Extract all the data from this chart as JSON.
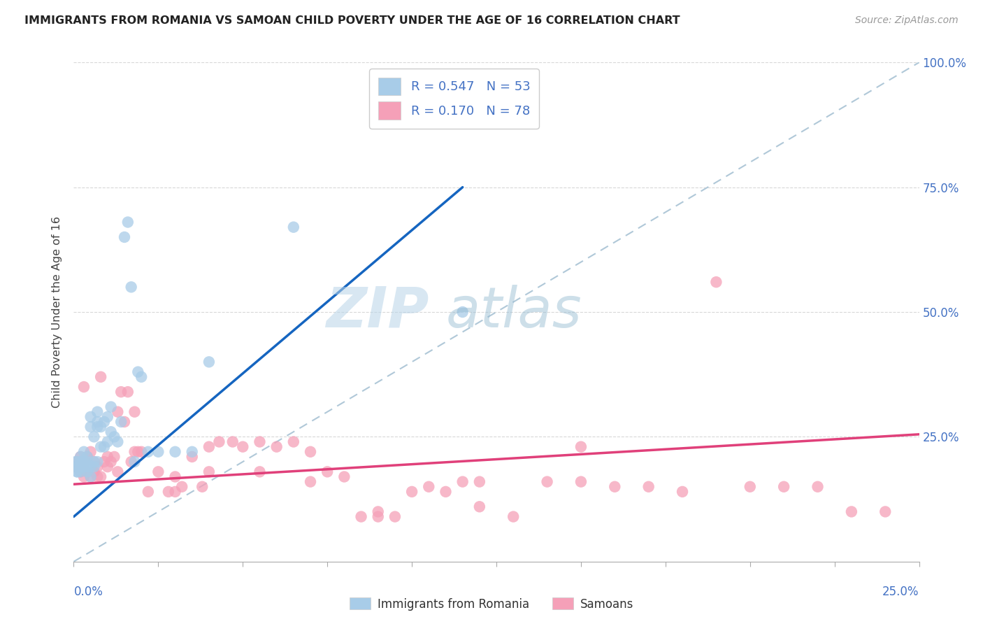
{
  "title": "IMMIGRANTS FROM ROMANIA VS SAMOAN CHILD POVERTY UNDER THE AGE OF 16 CORRELATION CHART",
  "source": "Source: ZipAtlas.com",
  "ylabel": "Child Poverty Under the Age of 16",
  "xlim": [
    0,
    0.25
  ],
  "ylim": [
    0,
    1.0
  ],
  "legend_r1": "0.547",
  "legend_n1": "53",
  "legend_r2": "0.170",
  "legend_n2": "78",
  "legend_label1": "Immigrants from Romania",
  "legend_label2": "Samoans",
  "blue_color": "#a8cce8",
  "pink_color": "#f5a0b8",
  "blue_line_color": "#1565c0",
  "pink_line_color": "#e0407a",
  "diag_color": "#b0c8d8",
  "watermark_color": "#c8dff0",
  "title_color": "#222222",
  "source_color": "#999999",
  "axis_label_color": "#4472c4",
  "grid_color": "#d8d8d8",
  "blue_scatter_x": [
    0.0005,
    0.001,
    0.001,
    0.001,
    0.001,
    0.002,
    0.002,
    0.002,
    0.002,
    0.002,
    0.003,
    0.003,
    0.003,
    0.003,
    0.004,
    0.004,
    0.004,
    0.004,
    0.005,
    0.005,
    0.005,
    0.005,
    0.006,
    0.006,
    0.006,
    0.007,
    0.007,
    0.007,
    0.007,
    0.008,
    0.008,
    0.009,
    0.009,
    0.01,
    0.01,
    0.011,
    0.011,
    0.012,
    0.013,
    0.014,
    0.015,
    0.016,
    0.017,
    0.018,
    0.019,
    0.02,
    0.022,
    0.025,
    0.03,
    0.035,
    0.04,
    0.065,
    0.115
  ],
  "blue_scatter_y": [
    0.2,
    0.18,
    0.19,
    0.2,
    0.18,
    0.18,
    0.19,
    0.2,
    0.2,
    0.21,
    0.19,
    0.19,
    0.2,
    0.22,
    0.18,
    0.19,
    0.2,
    0.21,
    0.17,
    0.19,
    0.27,
    0.29,
    0.19,
    0.2,
    0.25,
    0.2,
    0.27,
    0.28,
    0.3,
    0.23,
    0.27,
    0.23,
    0.28,
    0.24,
    0.29,
    0.26,
    0.31,
    0.25,
    0.24,
    0.28,
    0.65,
    0.68,
    0.55,
    0.2,
    0.38,
    0.37,
    0.22,
    0.22,
    0.22,
    0.22,
    0.4,
    0.67,
    0.5
  ],
  "pink_scatter_x": [
    0.0005,
    0.001,
    0.001,
    0.002,
    0.002,
    0.003,
    0.003,
    0.003,
    0.004,
    0.004,
    0.005,
    0.005,
    0.006,
    0.006,
    0.007,
    0.007,
    0.008,
    0.009,
    0.01,
    0.01,
    0.011,
    0.012,
    0.013,
    0.014,
    0.015,
    0.016,
    0.017,
    0.018,
    0.019,
    0.02,
    0.022,
    0.025,
    0.028,
    0.03,
    0.032,
    0.035,
    0.038,
    0.04,
    0.043,
    0.047,
    0.05,
    0.055,
    0.06,
    0.065,
    0.07,
    0.075,
    0.08,
    0.085,
    0.09,
    0.095,
    0.1,
    0.105,
    0.11,
    0.115,
    0.12,
    0.13,
    0.14,
    0.15,
    0.16,
    0.17,
    0.18,
    0.19,
    0.2,
    0.21,
    0.22,
    0.23,
    0.24,
    0.003,
    0.008,
    0.013,
    0.018,
    0.03,
    0.04,
    0.055,
    0.07,
    0.09,
    0.12,
    0.15
  ],
  "pink_scatter_y": [
    0.19,
    0.19,
    0.2,
    0.18,
    0.21,
    0.17,
    0.19,
    0.2,
    0.18,
    0.21,
    0.17,
    0.22,
    0.18,
    0.2,
    0.17,
    0.19,
    0.17,
    0.2,
    0.19,
    0.21,
    0.2,
    0.21,
    0.18,
    0.34,
    0.28,
    0.34,
    0.2,
    0.3,
    0.22,
    0.22,
    0.14,
    0.18,
    0.14,
    0.14,
    0.15,
    0.21,
    0.15,
    0.23,
    0.24,
    0.24,
    0.23,
    0.24,
    0.23,
    0.24,
    0.22,
    0.18,
    0.17,
    0.09,
    0.09,
    0.09,
    0.14,
    0.15,
    0.14,
    0.16,
    0.16,
    0.09,
    0.16,
    0.16,
    0.15,
    0.15,
    0.14,
    0.56,
    0.15,
    0.15,
    0.15,
    0.1,
    0.1,
    0.35,
    0.37,
    0.3,
    0.22,
    0.17,
    0.18,
    0.18,
    0.16,
    0.1,
    0.11,
    0.23
  ],
  "blue_line_x": [
    0.0,
    0.115
  ],
  "blue_line_y": [
    0.09,
    0.75
  ],
  "pink_line_x": [
    0.0,
    0.25
  ],
  "pink_line_y": [
    0.155,
    0.255
  ]
}
